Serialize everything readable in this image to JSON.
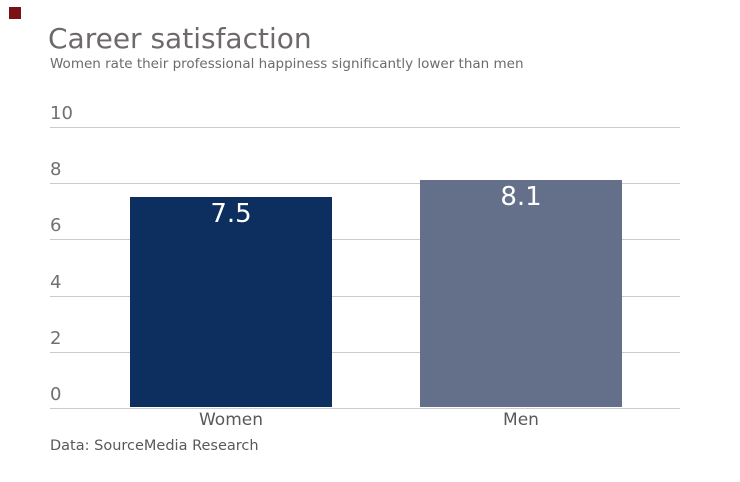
{
  "brand": {
    "color": "#7a1114"
  },
  "header": {
    "title": "Career satisfaction",
    "subtitle": "Women rate their professional happiness significantly lower than men"
  },
  "footer": {
    "source": "Data: SourceMedia Research"
  },
  "chart_data": {
    "type": "bar",
    "title": "Career satisfaction",
    "subtitle": "Women rate their professional happiness significantly lower than men",
    "source": "Data: SourceMedia Research",
    "categories": [
      "Women",
      "Men"
    ],
    "values": [
      7.5,
      8.1
    ],
    "value_labels": [
      "7.5",
      "8.1"
    ],
    "bar_colors": [
      "#0d2f5f",
      "#647089"
    ],
    "ylim": [
      0,
      10
    ],
    "yticks": [
      0,
      2,
      4,
      6,
      8,
      10
    ],
    "ytick_labels": [
      "0",
      "2",
      "4",
      "6",
      "8",
      "10"
    ],
    "grid": "horizontal",
    "gridline_color": "#cbcbcb",
    "legend": "none",
    "xlabel": "",
    "ylabel": ""
  }
}
